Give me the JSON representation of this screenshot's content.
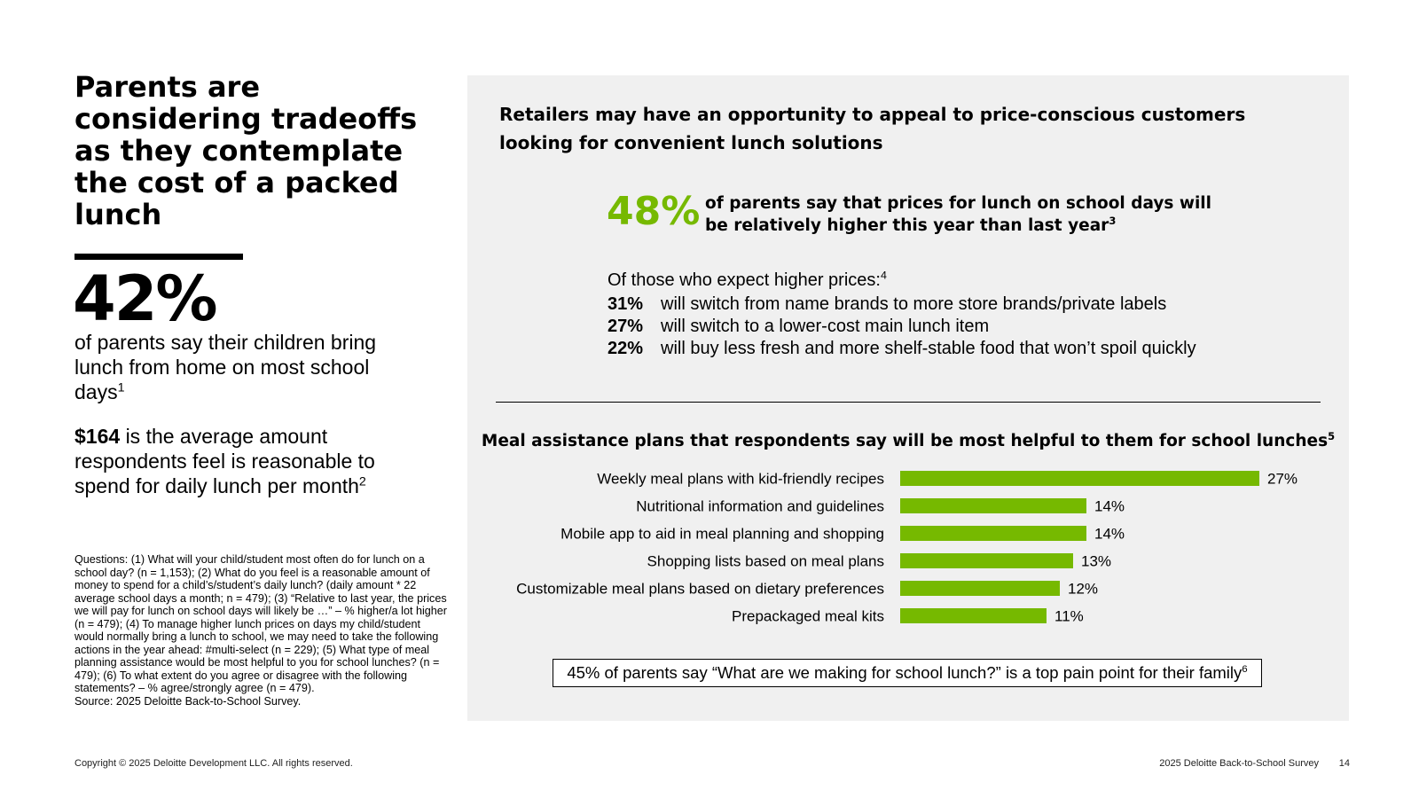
{
  "left": {
    "title": "Parents are considering tradeoffs as they contemplate the cost of a packed lunch",
    "big_stat": "42%",
    "big_stat_text": "of parents say their children bring lunch from home on most school days",
    "big_stat_sup": "1",
    "avg_amount": "$164",
    "avg_text": "is the average amount respondents feel is reasonable to spend for daily lunch per month",
    "avg_sup": "2",
    "footnotes": "Questions: (1) What will your child/student most often do for lunch on a school day? (n = 1,153); (2) What do you feel is a reasonable amount of money to spend for a child’s/student’s daily lunch? (daily amount * 22 average school days a month; n = 479); (3) “Relative to last year, the prices we will pay for lunch on school days will likely be …” – % higher/a lot higher (n = 479); (4) To manage higher lunch prices on days my child/student would normally bring a lunch to school, we may need to take the following actions in the year ahead: #multi-select (n = 229); (5) What type of meal planning assistance would be most helpful to you for school lunches? (n = 479); (6) To what extent do you agree or disagree with the following statements? – % agree/strongly agree (n = 479).",
    "source": "Source: 2025 Deloitte Back-to-School Survey."
  },
  "panel": {
    "title": "Retailers may have an opportunity to appeal to price-conscious customers looking for convenient lunch solutions",
    "stat": "48%",
    "stat_text": "of parents say that prices for lunch on school days will be relatively higher this year than last year",
    "stat_sup": "3",
    "higher_heading": "Of those who expect higher prices:",
    "higher_sup": "4",
    "higher_items": [
      {
        "pct": "31%",
        "text": "will switch from name brands to more store brands/private labels"
      },
      {
        "pct": "27%",
        "text": "will switch to a lower-cost main lunch item"
      },
      {
        "pct": "22%",
        "text": "will buy less fresh and more shelf-stable food that won’t spoil quickly"
      }
    ],
    "callout": "45% of parents say “What are we making for school lunch?” is a top pain point for their family",
    "callout_sup": "6"
  },
  "chart_data": {
    "type": "bar",
    "orientation": "horizontal",
    "title": "Meal assistance plans that respondents say will be most helpful to them for school lunches",
    "title_sup": "5",
    "categories": [
      "Weekly meal plans with kid-friendly recipes",
      "Nutritional information and guidelines",
      "Mobile app to aid in meal planning and shopping",
      "Shopping lists based on meal plans",
      "Customizable meal plans based on dietary preferences",
      "Prepackaged meal kits"
    ],
    "values": [
      27,
      14,
      14,
      13,
      12,
      11
    ],
    "value_labels": [
      "27%",
      "14%",
      "14%",
      "13%",
      "12%",
      "11%"
    ],
    "unit": "%",
    "bar_color": "#76b900",
    "grid": false,
    "legend": "none"
  },
  "footer": {
    "copyright": "Copyright © 2025 Deloitte Development LLC. All rights reserved.",
    "survey": "2025 Deloitte Back-to-School Survey",
    "page": "14"
  },
  "colors": {
    "accent": "#76b900",
    "panel_bg": "#f0f0f0"
  }
}
